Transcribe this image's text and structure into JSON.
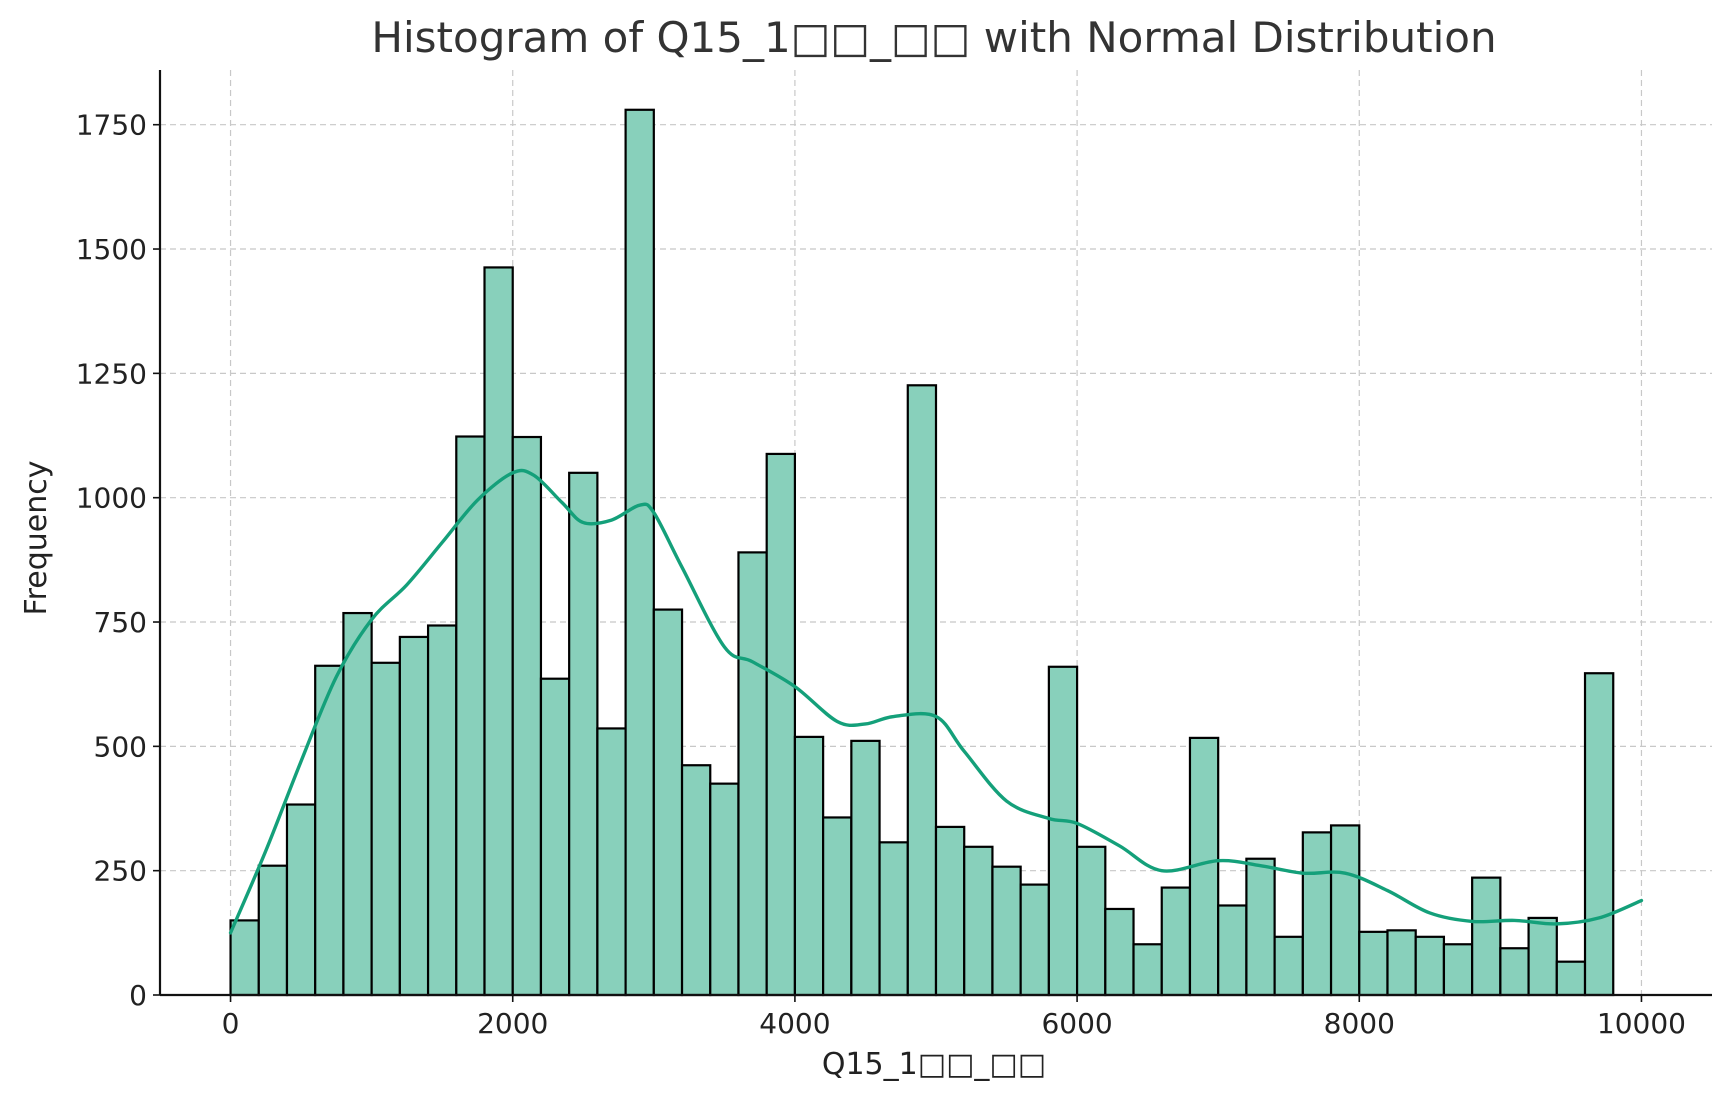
{
  "chart_data": {
    "type": "bar",
    "title": "Histogram of Q15_1□□_□□ with Normal Distribution",
    "xlabel": "Q15_1□□_□□",
    "ylabel": "Frequency",
    "xlim": [
      -500,
      10500
    ],
    "ylim": [
      0,
      1860
    ],
    "x_ticks": [
      0,
      2000,
      4000,
      6000,
      8000,
      10000
    ],
    "y_ticks": [
      0,
      250,
      500,
      750,
      1000,
      1250,
      1500,
      1750
    ],
    "grid": true,
    "bin_width": 200,
    "bin_start": 0,
    "values": [
      150,
      260,
      383,
      662,
      768,
      668,
      720,
      743,
      1123,
      1463,
      1122,
      636,
      1050,
      536,
      1780,
      775,
      462,
      425,
      890,
      1088,
      519,
      357,
      511,
      307,
      1226,
      338,
      298,
      258,
      222,
      660,
      298,
      173,
      102,
      216,
      517,
      180,
      274,
      117,
      327,
      341,
      127,
      130,
      117,
      102,
      236,
      94,
      155,
      67,
      647
    ],
    "curve": {
      "name": "",
      "x": [
        0,
        250,
        500,
        750,
        1000,
        1250,
        1500,
        1750,
        2000,
        2150,
        2350,
        2500,
        2700,
        2900,
        3000,
        3200,
        3500,
        3700,
        4000,
        4300,
        4500,
        4700,
        5000,
        5200,
        5500,
        5800,
        6000,
        6300,
        6600,
        7000,
        7300,
        7600,
        7900,
        8200,
        8500,
        8800,
        9100,
        9400,
        9700,
        10000
      ],
      "y": [
        125,
        290,
        470,
        640,
        755,
        825,
        910,
        995,
        1050,
        1045,
        990,
        950,
        955,
        985,
        970,
        860,
        700,
        670,
        620,
        550,
        545,
        560,
        560,
        490,
        390,
        355,
        345,
        300,
        250,
        270,
        260,
        245,
        245,
        210,
        165,
        148,
        150,
        143,
        155,
        190
      ]
    },
    "colors": {
      "bar_fill": "#88d0bb",
      "bar_edge": "#000000",
      "curve": "#14a07a"
    }
  }
}
